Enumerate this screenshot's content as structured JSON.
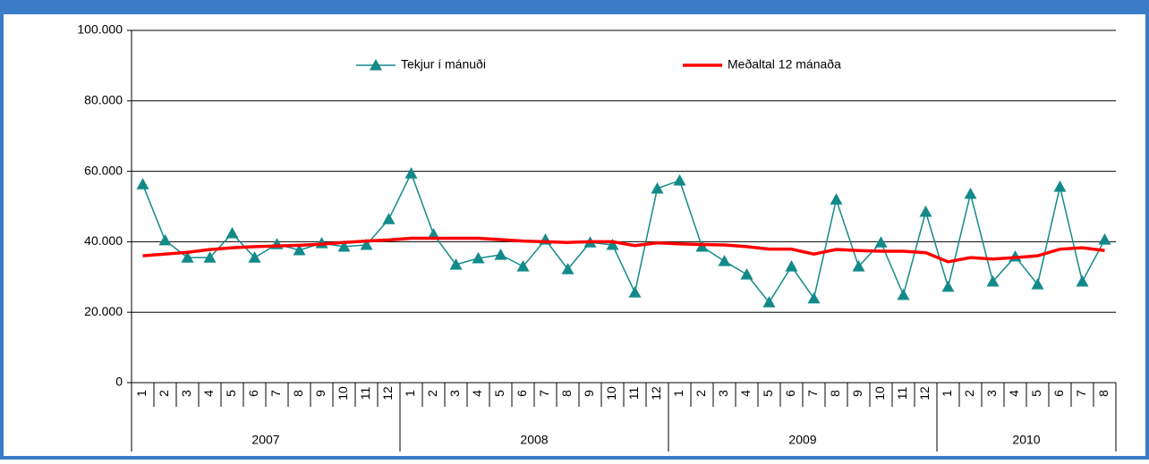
{
  "chart_data": {
    "type": "line",
    "category_groups": [
      {
        "label": "2007",
        "categories": [
          "1",
          "2",
          "3",
          "4",
          "5",
          "6",
          "7",
          "8",
          "9",
          "10",
          "11",
          "12"
        ]
      },
      {
        "label": "2008",
        "categories": [
          "1",
          "2",
          "3",
          "4",
          "5",
          "6",
          "7",
          "8",
          "9",
          "10",
          "11",
          "12"
        ]
      },
      {
        "label": "2009",
        "categories": [
          "1",
          "2",
          "3",
          "4",
          "5",
          "6",
          "7",
          "8",
          "9",
          "10",
          "11",
          "12"
        ]
      },
      {
        "label": "2010",
        "categories": [
          "1",
          "2",
          "3",
          "4",
          "5",
          "6",
          "7",
          "8"
        ]
      }
    ],
    "series": [
      {
        "name": "Tekjur í mánuði",
        "color": "#138a8a",
        "marker": "triangle",
        "values": [
          56300,
          40400,
          35500,
          35500,
          42400,
          35500,
          39300,
          37600,
          39600,
          38600,
          39100,
          46400,
          59400,
          42100,
          33500,
          35300,
          36300,
          33000,
          40600,
          32200,
          39800,
          39100,
          25600,
          55100,
          57400,
          38600,
          34500,
          30700,
          22800,
          33000,
          23900,
          52000,
          33000,
          39800,
          24900,
          48500,
          27200,
          53600,
          28700,
          35800,
          27900,
          55600,
          28700,
          40600
        ]
      },
      {
        "name": "Meðaltal 12 mánaða",
        "color": "#ff0000",
        "values": [
          36000,
          36500,
          37000,
          37800,
          38300,
          38600,
          38800,
          39000,
          39300,
          39800,
          40200,
          40500,
          41000,
          41000,
          41000,
          41000,
          40600,
          40200,
          40000,
          39800,
          40000,
          40000,
          38900,
          39700,
          39400,
          39200,
          39100,
          38600,
          37900,
          37900,
          36500,
          37800,
          37500,
          37300,
          37300,
          36900,
          34300,
          35500,
          35100,
          35500,
          36000,
          37900,
          38300,
          37500
        ]
      }
    ],
    "ylim": [
      0,
      100000
    ],
    "yticks": [
      0,
      {
        "value": 20000,
        "label": "20.000"
      },
      {
        "value": 40000,
        "label": "40.000"
      },
      {
        "value": 60000,
        "label": "60.000"
      },
      {
        "value": 80000,
        "label": "80.000"
      },
      {
        "value": 100000,
        "label": "100.000"
      }
    ],
    "grid": true,
    "legend": "top"
  }
}
